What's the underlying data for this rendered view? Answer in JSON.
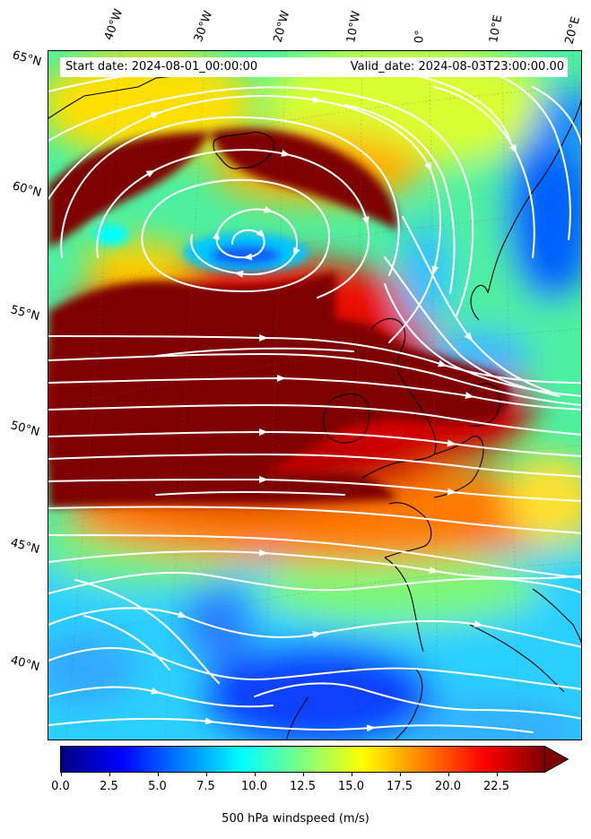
{
  "header": {
    "start_date": "Start date: 2024-08-01_00:00:00",
    "valid_date": "Valid_date: 2024-08-03T23:00:00.00"
  },
  "map": {
    "longitude_labels": [
      "40°W",
      "30°W",
      "20°W",
      "10°W",
      "0°",
      "10°E",
      "20°E"
    ],
    "latitude_labels": [
      "65°N",
      "60°N",
      "55°N",
      "50°N",
      "45°N",
      "40°N"
    ],
    "field": "500 hPa windspeed",
    "features": [
      "windspeed-contours",
      "streamlines",
      "coastlines",
      "graticule"
    ]
  },
  "colorbar": {
    "ticks": [
      "0.0",
      "2.5",
      "5.0",
      "7.5",
      "10.0",
      "12.5",
      "15.0",
      "17.5",
      "20.0",
      "22.5"
    ],
    "label": "500 hPa windspeed (m/s)",
    "range": [
      0,
      25
    ],
    "extend": "max",
    "colormap": "jet",
    "colors": [
      "#00007f",
      "#0000ff",
      "#007fff",
      "#00ffff",
      "#7fff7f",
      "#ffff00",
      "#ff7f00",
      "#ff0000",
      "#7f0000"
    ]
  }
}
